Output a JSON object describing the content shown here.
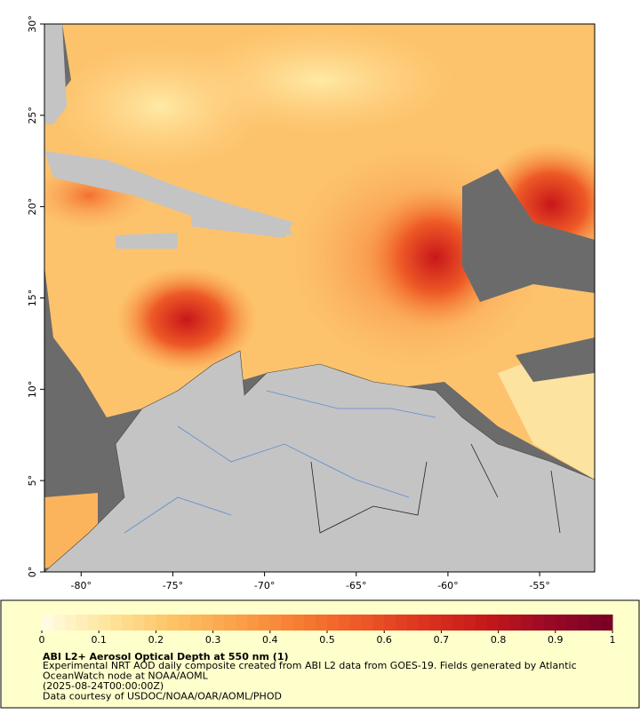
{
  "map": {
    "xlim": [
      -82,
      -52
    ],
    "ylim": [
      0,
      30
    ],
    "xticks": [
      {
        "value": -80,
        "label": "-80°"
      },
      {
        "value": -75,
        "label": "-75°"
      },
      {
        "value": -70,
        "label": "-70°"
      },
      {
        "value": -65,
        "label": "-65°"
      },
      {
        "value": -60,
        "label": "-60°"
      },
      {
        "value": -55,
        "label": "-55°"
      }
    ],
    "yticks": [
      {
        "value": 0,
        "label": "0°"
      },
      {
        "value": 5,
        "label": "5°"
      },
      {
        "value": 10,
        "label": "10°"
      },
      {
        "value": 15,
        "label": "15°"
      },
      {
        "value": 20,
        "label": "20°"
      },
      {
        "value": 25,
        "label": "25°"
      },
      {
        "value": 30,
        "label": "30°"
      }
    ]
  },
  "colorbar": {
    "lim": [
      0,
      1
    ],
    "ticks": [
      0,
      0.1,
      0.2,
      0.3,
      0.4,
      0.5,
      0.6,
      0.7,
      0.8,
      0.9,
      1
    ],
    "colors": [
      "#fffbe0",
      "#ffe49a",
      "#fdc466",
      "#fba24a",
      "#f77e33",
      "#ee5a26",
      "#dd3520",
      "#c61a1a",
      "#9c0a24",
      "#7a0026"
    ]
  },
  "caption": {
    "title": "ABI L2+ Aerosol Optical Depth at 550 nm (1)",
    "lines": [
      "Experimental NRT AOD daily composite created from ABI L2 data from GOES-19. Fields generated by Atlantic",
      "OceanWatch node at NOAA/AOML",
      "(2025-08-24T00:00:00Z)",
      "Data courtesy of USDOC/NOAA/OAR/AOML/PHOD"
    ]
  }
}
